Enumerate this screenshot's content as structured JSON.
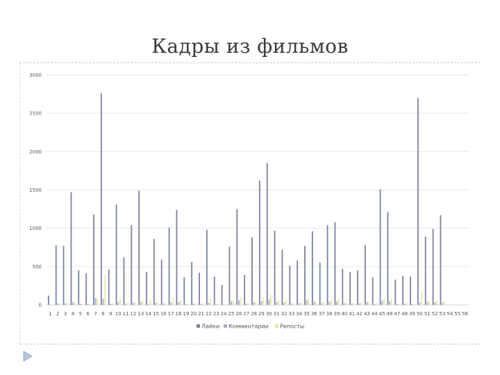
{
  "slide": {
    "title": "Кадры из фильмов"
  },
  "chart_data": {
    "type": "bar",
    "ylim": [
      0,
      3000
    ],
    "yticks": [
      0,
      500,
      1000,
      1500,
      2000,
      2500,
      3000
    ],
    "grid": true,
    "legend_position": "bottom",
    "categories": [
      "1",
      "2",
      "3",
      "4",
      "5",
      "6",
      "7",
      "8",
      "9",
      "10",
      "11",
      "12",
      "13",
      "14",
      "15",
      "16",
      "17",
      "18",
      "19",
      "20",
      "21",
      "22",
      "23",
      "24",
      "25",
      "26",
      "27",
      "28",
      "29",
      "30",
      "31",
      "32",
      "33",
      "34",
      "35",
      "36",
      "37",
      "38",
      "39",
      "40",
      "41",
      "42",
      "43",
      "44",
      "45",
      "46",
      "47",
      "48",
      "49",
      "50",
      "51",
      "52",
      "53",
      "54",
      "55",
      "56"
    ],
    "series": [
      {
        "name": "Лайки",
        "color": "#7b82a0",
        "values": [
          120,
          780,
          770,
          1470,
          450,
          410,
          1180,
          2760,
          460,
          1310,
          620,
          1040,
          1490,
          430,
          860,
          590,
          1010,
          1240,
          360,
          560,
          420,
          980,
          370,
          260,
          760,
          1250,
          390,
          880,
          1620,
          1850,
          970,
          720,
          510,
          580,
          770,
          960,
          550,
          1040,
          1080,
          470,
          430,
          450,
          780,
          360,
          1510,
          1210,
          330,
          380,
          370,
          2700,
          890,
          990,
          1170,
          0,
          0,
          0
        ]
      },
      {
        "name": "Комментарии",
        "color": "#a9adbf",
        "values": [
          5,
          20,
          20,
          35,
          15,
          10,
          90,
          80,
          15,
          35,
          15,
          25,
          40,
          10,
          25,
          15,
          30,
          35,
          10,
          15,
          15,
          30,
          10,
          5,
          45,
          60,
          15,
          30,
          50,
          70,
          40,
          30,
          15,
          20,
          60,
          40,
          20,
          40,
          45,
          20,
          15,
          20,
          35,
          10,
          55,
          50,
          10,
          15,
          10,
          30,
          40,
          35,
          30,
          0,
          0,
          0
        ]
      },
      {
        "name": "Репосты",
        "color": "#e6e6a6",
        "values": [
          5,
          15,
          15,
          30,
          10,
          10,
          80,
          390,
          20,
          70,
          20,
          30,
          50,
          60,
          30,
          20,
          90,
          60,
          10,
          20,
          15,
          80,
          20,
          10,
          55,
          100,
          20,
          40,
          100,
          130,
          60,
          60,
          20,
          30,
          80,
          40,
          40,
          60,
          80,
          30,
          20,
          30,
          40,
          20,
          80,
          80,
          15,
          20,
          20,
          170,
          50,
          60,
          40,
          0,
          0,
          0
        ]
      }
    ]
  }
}
